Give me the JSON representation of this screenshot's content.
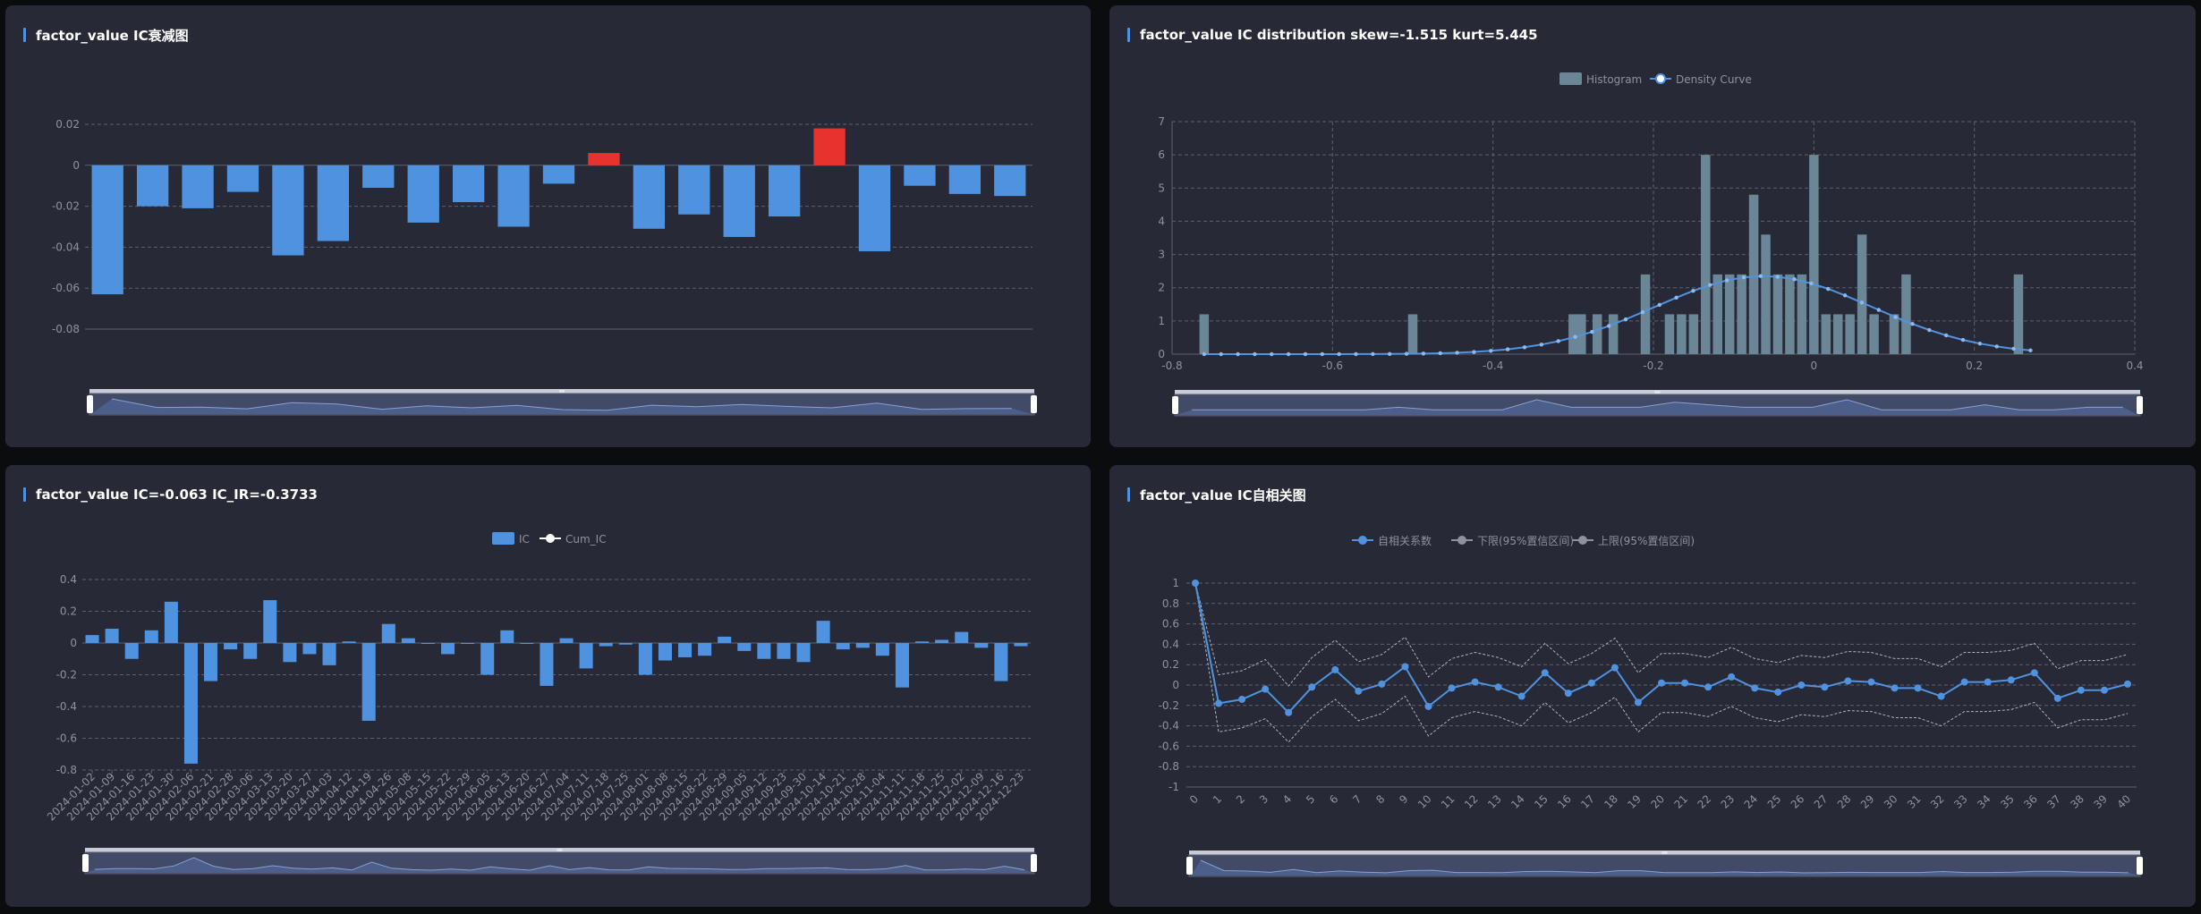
{
  "panels": {
    "p1": {
      "title": "factor_value IC衰减图"
    },
    "p2": {
      "title": "factor_value IC distribution skew=-1.515 kurt=5.445"
    },
    "p3": {
      "title": "factor_value IC=-0.063 IC_IR=-0.3733"
    },
    "p4": {
      "title": "factor_value IC自相关图"
    }
  },
  "colors": {
    "panel_bg": "#272a36",
    "accent": "#4f93e0",
    "bar_blue": "#4f93e0",
    "bar_red": "#e8322d",
    "hist": "#6b8797",
    "grid": "#5c6070",
    "text": "#8e929c",
    "slider_track": "#c8ccd6",
    "slider_fill": "#414a66"
  },
  "chart_data": [
    {
      "id": "decay",
      "type": "bar",
      "title": "factor_value IC衰减图",
      "ylim": [
        -0.08,
        0.02
      ],
      "yticks": [
        "0.02",
        "0",
        "-0.02",
        "-0.04",
        "-0.06",
        "-0.08"
      ],
      "grid": true,
      "values": [
        -0.063,
        -0.02,
        -0.021,
        -0.013,
        -0.044,
        -0.037,
        -0.011,
        -0.028,
        -0.018,
        -0.03,
        -0.009,
        0.006,
        -0.031,
        -0.024,
        -0.035,
        -0.025,
        0.018,
        -0.042,
        -0.01,
        -0.014,
        -0.015
      ],
      "positive_color": "#e8322d",
      "negative_color": "#4f93e0"
    },
    {
      "id": "distribution",
      "type": "bar",
      "title": "factor_value IC distribution skew=-1.515 kurt=5.445",
      "legend": [
        "Histogram",
        "Density Curve"
      ],
      "legend_position": "top",
      "xlim": [
        -0.8,
        0.4
      ],
      "xticks": [
        "-0.8",
        "-0.6",
        "-0.4",
        "-0.2",
        "0",
        "0.2",
        "0.4"
      ],
      "ylim": [
        0,
        7
      ],
      "yticks": [
        "7",
        "6",
        "5",
        "4",
        "3",
        "2",
        "1",
        "0"
      ],
      "grid": true,
      "histogram": {
        "x": [
          -0.76,
          -0.5,
          -0.3,
          -0.29,
          -0.27,
          -0.25,
          -0.21,
          -0.18,
          -0.165,
          -0.15,
          -0.135,
          -0.12,
          -0.105,
          -0.09,
          -0.075,
          -0.06,
          -0.045,
          -0.03,
          -0.015,
          0.0,
          0.015,
          0.03,
          0.045,
          0.06,
          0.075,
          0.1,
          0.115,
          0.24
        ],
        "counts": [
          1.2,
          1.2,
          1.2,
          1.2,
          1.2,
          1.2,
          2.4,
          1.2,
          1.2,
          1.2,
          6.0,
          2.4,
          2.4,
          2.4,
          4.8,
          3.6,
          2.4,
          2.4,
          2.4,
          6.0,
          1.2,
          1.2,
          1.2,
          3.6,
          1.2,
          1.2,
          2.4,
          0.0
        ]
      },
      "hist_fix": {
        "x": [
          -0.76,
          -0.5,
          0.255
        ],
        "counts": [
          1.2,
          1.2,
          2.4
        ]
      },
      "density": {
        "mu": -0.063,
        "sigma": 0.135,
        "peak": 2.35,
        "x_start": -0.76,
        "x_end": 0.27,
        "points": 50
      }
    },
    {
      "id": "ic_series",
      "type": "bar",
      "title": "factor_value IC=-0.063 IC_IR=-0.3733",
      "legend": [
        "IC",
        "Cum_IC"
      ],
      "legend_position": "top",
      "ylim": [
        -0.8,
        0.4
      ],
      "yticks": [
        "0.4",
        "0.2",
        "0",
        "-0.2",
        "-0.4",
        "-0.6",
        "-0.8"
      ],
      "grid": true,
      "xticks": [
        "2024-01-02",
        "2024-01-09",
        "2024-01-16",
        "2024-01-23",
        "2024-01-30",
        "2024-02-06",
        "2024-02-21",
        "2024-02-28",
        "2024-03-06",
        "2024-03-13",
        "2024-03-20",
        "2024-03-27",
        "2024-04-03",
        "2024-04-12",
        "2024-04-19",
        "2024-04-26",
        "2024-05-08",
        "2024-05-15",
        "2024-05-22",
        "2024-05-29",
        "2024-06-05",
        "2024-06-13",
        "2024-06-20",
        "2024-06-27",
        "2024-07-04",
        "2024-07-11",
        "2024-07-18",
        "2024-07-25",
        "2024-08-01",
        "2024-08-08",
        "2024-08-15",
        "2024-08-22",
        "2024-08-29",
        "2024-09-05",
        "2024-09-12",
        "2024-09-23",
        "2024-09-30",
        "2024-10-14",
        "2024-10-21",
        "2024-10-28",
        "2024-11-04",
        "2024-11-11",
        "2024-11-18",
        "2024-11-25",
        "2024-12-02",
        "2024-12-09",
        "2024-12-16",
        "2024-12-23"
      ],
      "values": [
        0.05,
        0.09,
        -0.1,
        0.08,
        0.26,
        -0.76,
        -0.24,
        -0.04,
        -0.1,
        0.27,
        -0.12,
        -0.07,
        -0.14,
        0.01,
        -0.49,
        0.12,
        0.03,
        0.0,
        -0.07,
        0.0,
        -0.2,
        0.08,
        0.0,
        -0.27,
        0.03,
        -0.16,
        -0.02,
        -0.01,
        -0.2,
        -0.11,
        -0.09,
        -0.08,
        0.04,
        -0.05,
        -0.1,
        -0.1,
        -0.12,
        0.14,
        -0.04,
        -0.03,
        -0.08,
        -0.28,
        0.01,
        0.02,
        0.07,
        -0.03,
        -0.24,
        -0.02
      ]
    },
    {
      "id": "acf",
      "type": "line",
      "title": "factor_value IC自相关图",
      "legend": [
        "自相关系数",
        "下限(95%置信区间)",
        "上限(95%置信区间)"
      ],
      "legend_position": "top",
      "ylim": [
        -1,
        1
      ],
      "yticks": [
        "1",
        "0.8",
        "0.6",
        "0.4",
        "0.2",
        "0",
        "-0.2",
        "-0.4",
        "-0.6",
        "-0.8",
        "-1"
      ],
      "grid": true,
      "xticks": [
        "0",
        "1",
        "2",
        "3",
        "4",
        "5",
        "6",
        "7",
        "8",
        "9",
        "10",
        "11",
        "12",
        "13",
        "14",
        "15",
        "16",
        "17",
        "18",
        "19",
        "20",
        "21",
        "22",
        "23",
        "24",
        "25",
        "26",
        "27",
        "28",
        "29",
        "30",
        "31",
        "32",
        "33",
        "34",
        "35",
        "36",
        "37",
        "38",
        "39",
        "40"
      ],
      "series": [
        {
          "name": "自相关系数",
          "values": [
            1.0,
            -0.18,
            -0.14,
            -0.04,
            -0.27,
            -0.02,
            0.15,
            -0.06,
            0.01,
            0.18,
            -0.21,
            -0.03,
            0.03,
            -0.02,
            -0.11,
            0.12,
            -0.08,
            0.02,
            0.17,
            -0.17,
            0.02,
            0.02,
            -0.02,
            0.08,
            -0.03,
            -0.07,
            0.0,
            -0.02,
            0.04,
            0.03,
            -0.03,
            -0.03,
            -0.11,
            0.03,
            0.03,
            0.05,
            0.12,
            -0.13,
            -0.05,
            -0.05,
            0.01
          ]
        },
        {
          "name": "下限(95%置信区间)",
          "values": [
            1.0,
            -0.46,
            -0.42,
            -0.33,
            -0.56,
            -0.31,
            -0.14,
            -0.35,
            -0.28,
            -0.11,
            -0.5,
            -0.32,
            -0.26,
            -0.31,
            -0.4,
            -0.17,
            -0.37,
            -0.27,
            -0.12,
            -0.46,
            -0.27,
            -0.27,
            -0.31,
            -0.21,
            -0.32,
            -0.36,
            -0.29,
            -0.31,
            -0.25,
            -0.26,
            -0.32,
            -0.32,
            -0.4,
            -0.26,
            -0.26,
            -0.24,
            -0.17,
            -0.42,
            -0.34,
            -0.34,
            -0.28
          ]
        },
        {
          "name": "上限(95%置信区间)",
          "values": [
            1.0,
            0.1,
            0.14,
            0.25,
            -0.01,
            0.27,
            0.44,
            0.23,
            0.3,
            0.47,
            0.08,
            0.26,
            0.32,
            0.27,
            0.18,
            0.41,
            0.21,
            0.31,
            0.46,
            0.12,
            0.31,
            0.31,
            0.27,
            0.37,
            0.26,
            0.22,
            0.29,
            0.27,
            0.33,
            0.32,
            0.26,
            0.26,
            0.18,
            0.32,
            0.32,
            0.34,
            0.41,
            0.16,
            0.24,
            0.24,
            0.3
          ]
        }
      ]
    }
  ]
}
